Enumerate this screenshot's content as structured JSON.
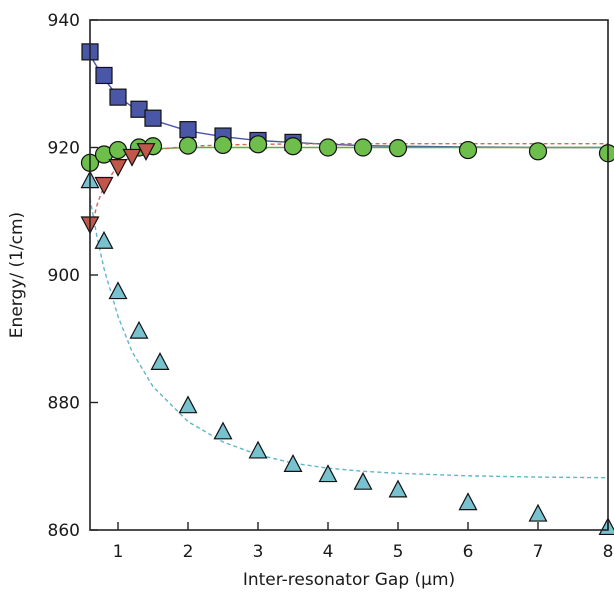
{
  "chart_data": {
    "type": "scatter",
    "title": "",
    "xlabel": "Inter-resonator Gap (μm)",
    "ylabel": "Energy/ (1/cm)",
    "xlim": [
      0.6,
      8.0
    ],
    "ylim": [
      860,
      940
    ],
    "xticks": [
      1,
      2,
      3,
      4,
      5,
      6,
      7,
      8
    ],
    "yticks": [
      860,
      880,
      900,
      920,
      940
    ],
    "grid": false,
    "legend": "none",
    "series": [
      {
        "marker": "square",
        "color": "#4a56a6",
        "line_color": "#4a56a6",
        "line_style": "solid",
        "x": [
          0.6,
          0.8,
          1.0,
          1.3,
          1.5,
          2.0,
          2.5,
          3.0,
          3.5
        ],
        "y": [
          935.0,
          931.3,
          927.9,
          926.0,
          924.6,
          922.8,
          921.8,
          921.1,
          920.8
        ],
        "fit_x": [
          0.6,
          0.8,
          1.0,
          1.3,
          1.5,
          2.0,
          2.5,
          3.0,
          3.5,
          4.0,
          4.5,
          5.0,
          6.0,
          7.0,
          8.0
        ],
        "fit_y": [
          934.5,
          930.8,
          928.0,
          925.6,
          924.3,
          922.6,
          921.7,
          921.1,
          920.8,
          920.5,
          920.3,
          920.2,
          920.1,
          920.0,
          920.0
        ]
      },
      {
        "marker": "circle",
        "color": "#6dbe4b",
        "line_color": "#5caf3e",
        "line_style": "solid",
        "x": [
          0.6,
          0.8,
          1.0,
          1.3,
          1.5,
          2.0,
          2.5,
          3.0,
          3.5,
          4.0,
          4.5,
          5.0,
          6.0,
          7.0,
          8.0
        ],
        "y": [
          917.6,
          918.9,
          919.6,
          920.0,
          920.2,
          920.3,
          920.4,
          920.5,
          920.2,
          920.0,
          920.0,
          919.9,
          919.6,
          919.4,
          919.1
        ],
        "fit_x": [
          0.6,
          0.8,
          1.0,
          1.3,
          1.5,
          2.0,
          2.5,
          3.0,
          3.5,
          4.0,
          4.5,
          5.0,
          6.0,
          7.0,
          8.0
        ],
        "fit_y": [
          916.5,
          918.4,
          919.2,
          919.7,
          919.8,
          920.0,
          920.0,
          920.0,
          920.0,
          920.0,
          920.0,
          920.0,
          920.0,
          920.0,
          920.0
        ]
      },
      {
        "marker": "triangle-down",
        "color": "#c0574b",
        "line_color": "#d9665a",
        "line_style": "dashed",
        "x": [
          0.6,
          0.8,
          1.0,
          1.2,
          1.4
        ],
        "y": [
          908.0,
          914.2,
          917.0,
          918.6,
          919.5
        ],
        "fit_x": [
          0.6,
          0.7,
          0.8,
          1.0,
          1.2,
          1.5,
          2.0,
          2.5,
          3.0,
          4.0,
          5.0,
          6.0,
          7.0,
          8.0
        ],
        "fit_y": [
          906.5,
          911.0,
          914.0,
          917.2,
          918.6,
          919.6,
          920.2,
          920.4,
          920.5,
          920.6,
          920.6,
          920.6,
          920.6,
          920.6
        ]
      },
      {
        "marker": "triangle-up",
        "color": "#78c2cf",
        "line_color": "#5fb6c8",
        "line_style": "dashed",
        "x": [
          0.6,
          0.8,
          1.0,
          1.3,
          1.6,
          2.0,
          2.5,
          3.0,
          3.5,
          4.0,
          4.5,
          5.0,
          6.0,
          7.0,
          8.0
        ],
        "y": [
          914.8,
          905.3,
          897.4,
          891.2,
          886.3,
          879.5,
          875.4,
          872.4,
          870.3,
          868.7,
          867.5,
          866.3,
          864.3,
          862.5,
          860.4
        ],
        "fit_x": [
          0.6,
          0.7,
          0.8,
          1.0,
          1.2,
          1.5,
          2.0,
          2.5,
          3.0,
          3.5,
          4.0,
          4.5,
          5.0,
          6.0,
          7.0,
          8.0
        ],
        "fit_y": [
          912.0,
          906.0,
          901.0,
          893.5,
          888.0,
          882.5,
          877.0,
          873.8,
          871.8,
          870.5,
          869.7,
          869.2,
          868.9,
          868.5,
          868.3,
          868.2
        ]
      }
    ]
  }
}
